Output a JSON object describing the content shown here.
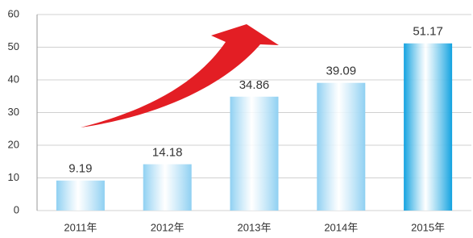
{
  "chart_data": {
    "type": "bar",
    "categories": [
      "2011年",
      "2012年",
      "2013年",
      "2014年",
      "2015年"
    ],
    "values": [
      9.19,
      14.18,
      34.86,
      39.09,
      51.17
    ],
    "colors": [
      "#8fd0f2",
      "#8fd0f2",
      "#8fd0f2",
      "#8fd0f2",
      "#12a2e0"
    ],
    "ylim": [
      0,
      60
    ],
    "yticks": [
      0,
      10,
      20,
      30,
      40,
      50,
      60
    ],
    "grid": true
  }
}
